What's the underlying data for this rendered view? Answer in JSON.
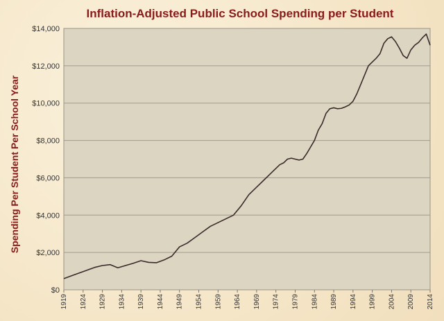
{
  "chart_data": {
    "type": "line",
    "title": "Inflation-Adjusted  Public School Spending per Student",
    "xlabel": "",
    "ylabel": "Spending Per Student Per School Year",
    "ylim": [
      0,
      14000
    ],
    "xlim": [
      1919,
      2014
    ],
    "grid": "horizontal",
    "legend": "none",
    "y_ticks": [
      "$0",
      "$2,000",
      "$4,000",
      "$6,000",
      "$8,000",
      "$10,000",
      "$12,000",
      "$14,000"
    ],
    "x_ticks": [
      "1919",
      "1924",
      "1929",
      "1934",
      "1939",
      "1944",
      "1949",
      "1954",
      "1959",
      "1964",
      "1969",
      "1974",
      "1979",
      "1984",
      "1989",
      "1994",
      "1999",
      "2004",
      "2009",
      "2014"
    ],
    "line_color": "#3a2a2a",
    "plot_bg": "#dcd5c1",
    "series": [
      {
        "x": [
          1919,
          1921,
          1923,
          1925,
          1927,
          1929,
          1931,
          1933,
          1935,
          1937,
          1939,
          1941,
          1943,
          1945,
          1947,
          1949,
          1951,
          1953,
          1955,
          1957,
          1959,
          1961,
          1963,
          1965,
          1967,
          1969,
          1971,
          1973,
          1975,
          1976,
          1977,
          1978,
          1979,
          1980,
          1981,
          1982,
          1983,
          1984,
          1985,
          1986,
          1987,
          1988,
          1989,
          1990,
          1991,
          1992,
          1993,
          1994,
          1995,
          1996,
          1997,
          1998,
          1999,
          2000,
          2001,
          2002,
          2003,
          2004,
          2005,
          2006,
          2007,
          2008,
          2009,
          2010,
          2011,
          2012,
          2013,
          2014
        ],
        "y": [
          600,
          750,
          900,
          1050,
          1200,
          1300,
          1350,
          1180,
          1300,
          1420,
          1560,
          1470,
          1450,
          1600,
          1800,
          2300,
          2500,
          2800,
          3100,
          3400,
          3600,
          3800,
          4000,
          4500,
          5100,
          5500,
          5900,
          6300,
          6700,
          6800,
          7000,
          7050,
          7000,
          6950,
          7000,
          7300,
          7650,
          8000,
          8550,
          8900,
          9450,
          9700,
          9750,
          9700,
          9720,
          9800,
          9900,
          10100,
          10500,
          11000,
          11500,
          12000,
          12200,
          12400,
          12650,
          13200,
          13450,
          13550,
          13300,
          12950,
          12550,
          12400,
          12850,
          13100,
          13250,
          13500,
          13700,
          13100
        ]
      }
    ]
  }
}
